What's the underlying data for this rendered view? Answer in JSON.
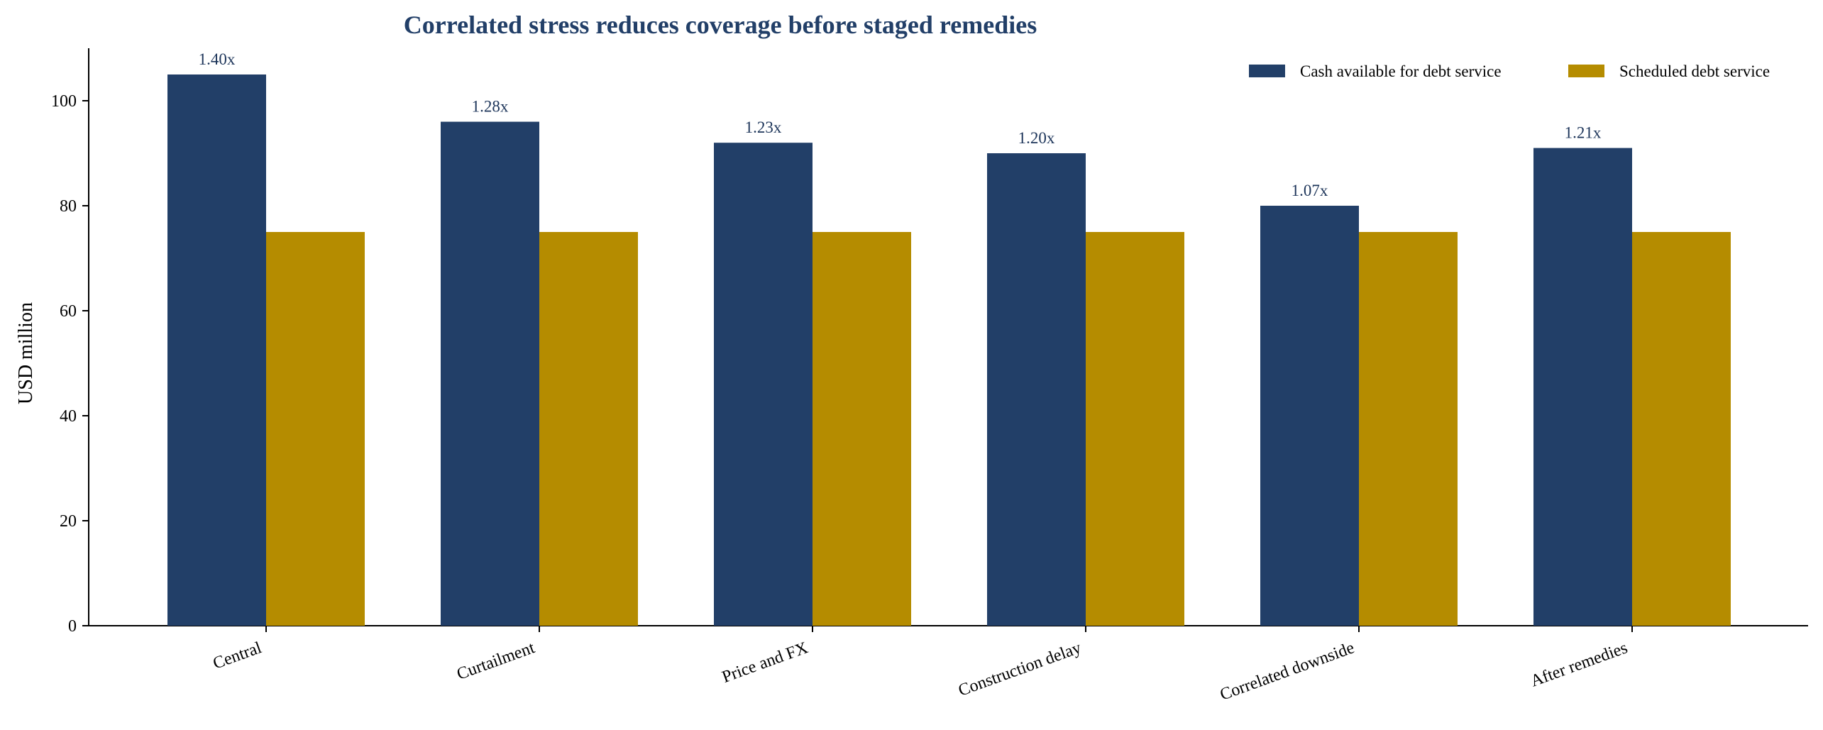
{
  "chart_data": {
    "type": "bar",
    "title": "Correlated stress reduces coverage before staged remedies",
    "xlabel": "",
    "ylabel": "USD million",
    "ylim": [
      0,
      110
    ],
    "yticks": [
      0,
      20,
      40,
      60,
      80,
      100
    ],
    "categories": [
      "Central",
      "Curtailment",
      "Price and FX",
      "Construction delay",
      "Correlated downside",
      "After remedies"
    ],
    "series": [
      {
        "name": "Cash available for debt service",
        "color": "#223f68",
        "values": [
          105,
          96,
          92,
          90,
          80,
          91
        ]
      },
      {
        "name": "Scheduled debt service",
        "color": "#b58c00",
        "values": [
          75,
          75,
          75,
          75,
          75,
          75
        ]
      }
    ],
    "data_labels": [
      "1.40x",
      "1.28x",
      "1.23x",
      "1.20x",
      "1.07x",
      "1.21x"
    ],
    "legend": "top-right",
    "grid": false
  }
}
